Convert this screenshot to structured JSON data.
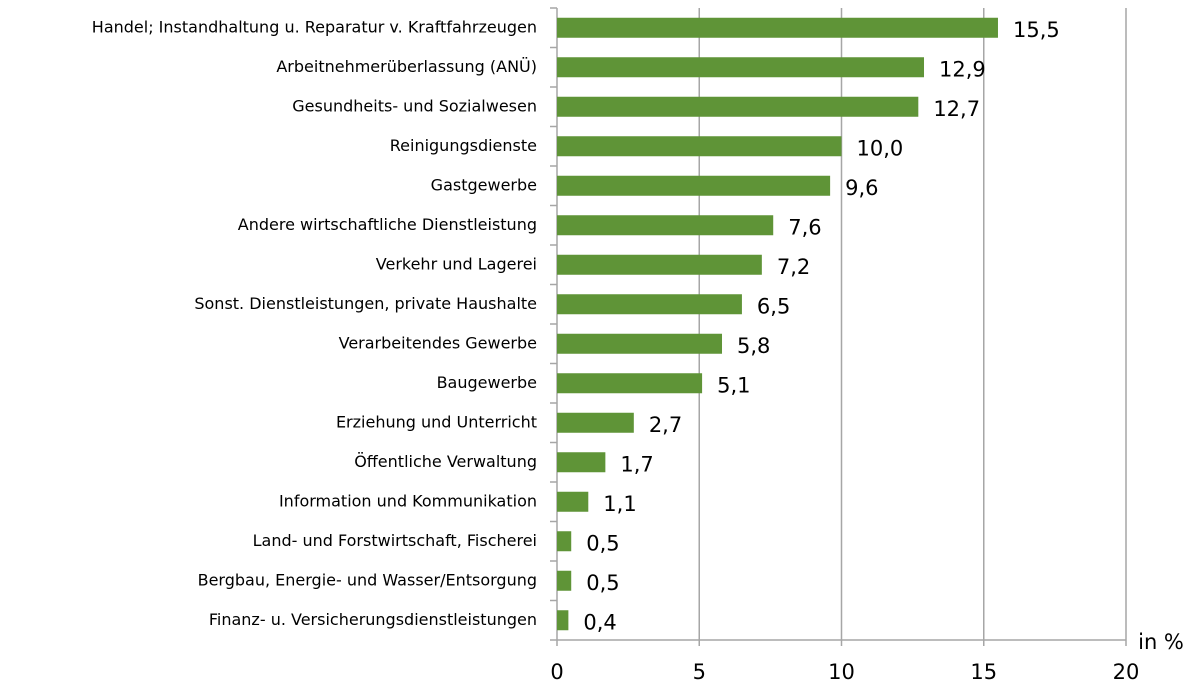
{
  "chart_data": {
    "type": "barh",
    "categories": [
      "Handel; Instandhaltung u. Reparatur v. Kraftfahrzeugen",
      "Arbeitnehmerüberlassung (ANÜ)",
      "Gesundheits- und Sozialwesen",
      "Reinigungsdienste",
      "Gastgewerbe",
      "Andere wirtschaftliche Dienstleistung",
      "Verkehr und Lagerei",
      "Sonst. Dienstleistungen, private Haushalte",
      "Verarbeitendes Gewerbe",
      "Baugewerbe",
      "Erziehung und Unterricht",
      "Öffentliche Verwaltung",
      "Information und Kommunikation",
      "Land- und Forstwirtschaft, Fischerei",
      "Bergbau, Energie- und Wasser/Entsorgung",
      "Finanz- u. Versicherungsdienstleistungen"
    ],
    "values": [
      15.5,
      12.9,
      12.7,
      10.0,
      9.6,
      7.6,
      7.2,
      6.5,
      5.8,
      5.1,
      2.7,
      1.7,
      1.1,
      0.5,
      0.5,
      0.4
    ],
    "value_labels": [
      "15,5",
      "12,9",
      "12,7",
      "10,0",
      "9,6",
      "7,6",
      "7,2",
      "6,5",
      "5,8",
      "5,1",
      "2,7",
      "1,7",
      "1,1",
      "0,5",
      "0,5",
      "0,4"
    ],
    "color": "#5f9437",
    "xlabel": "in %",
    "xlim": [
      0,
      20
    ],
    "xticks": [
      0,
      5,
      10,
      15,
      20
    ],
    "grid": true
  }
}
